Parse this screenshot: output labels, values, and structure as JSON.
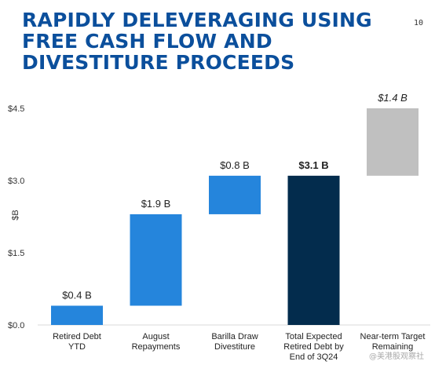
{
  "header": {
    "title": "RAPIDLY DELEVERAGING USING FREE CASH FLOW AND DIVESTITURE PROCEEDS",
    "page_number": "10"
  },
  "watermark": "@美港股观察社",
  "chart_data": {
    "type": "bar",
    "subtype": "waterfall",
    "ylabel": "$B",
    "ylim": [
      0,
      4.5
    ],
    "yticks": [
      0,
      1.5,
      3.0,
      4.5
    ],
    "ytick_labels": [
      "$0.0",
      "$1.5",
      "$3.0",
      "$4.5"
    ],
    "grid": false,
    "categories": [
      "Retired Debt YTD",
      "August Repayments",
      "Barilla Draw Divestiture",
      "Total Expected Retired Debt by End of 3Q24",
      "Near-term Target Remaining"
    ],
    "category_lines": [
      [
        "Retired Debt",
        "YTD"
      ],
      [
        "August",
        "Repayments"
      ],
      [
        "Barilla Draw",
        "Divestiture"
      ],
      [
        "Total Expected",
        "Retired Debt by",
        "End of 3Q24"
      ],
      [
        "Near-term Target",
        "Remaining"
      ]
    ],
    "bars": [
      {
        "start": 0,
        "end": 0.4,
        "label": "$0.4 B",
        "color": "#2585dc",
        "label_bold": false,
        "label_italic": false
      },
      {
        "start": 0.4,
        "end": 2.3,
        "label": "$1.9 B",
        "color": "#2585dc",
        "label_bold": false,
        "label_italic": false
      },
      {
        "start": 2.3,
        "end": 3.1,
        "label": "$0.8 B",
        "color": "#2585dc",
        "label_bold": false,
        "label_italic": false
      },
      {
        "start": 0,
        "end": 3.1,
        "label": "$3.1 B",
        "color": "#032c4d",
        "label_bold": true,
        "label_italic": false
      },
      {
        "start": 3.1,
        "end": 4.5,
        "label": "$1.4 B",
        "color": "#c0c0c0",
        "label_bold": false,
        "label_italic": true
      }
    ]
  }
}
